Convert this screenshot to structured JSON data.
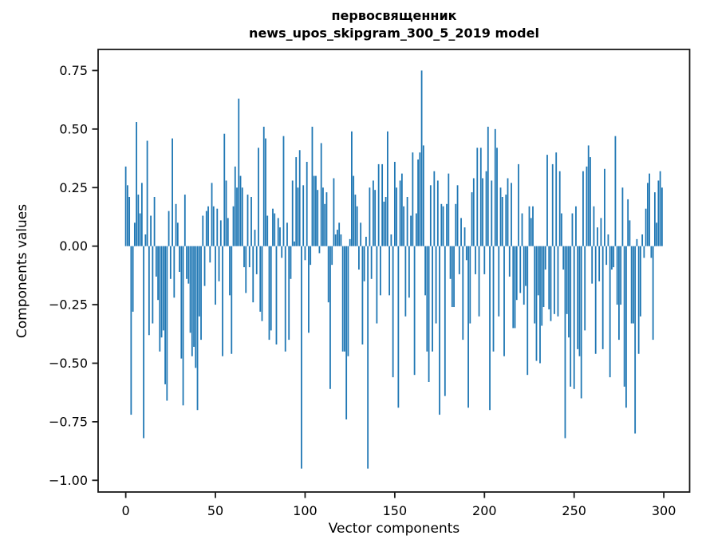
{
  "chart_data": {
    "type": "bar",
    "title_lines": [
      "первосвященник",
      "news_upos_skipgram_300_5_2019 model"
    ],
    "xlabel": "Vector components",
    "ylabel": "Components values",
    "bar_color": "#1f77b4",
    "axis_color": "#1a1a1a",
    "grid": false,
    "legend": null,
    "n_components": 300,
    "xlim": [
      -15.4,
      314.4
    ],
    "ylim": [
      -1.05,
      0.84
    ],
    "xticks": [
      0,
      50,
      100,
      150,
      200,
      250,
      300
    ],
    "xtick_labels": [
      "0",
      "50",
      "100",
      "150",
      "200",
      "250",
      "300"
    ],
    "yticks": [
      0.75,
      0.5,
      0.25,
      0,
      -0.25,
      -0.5,
      -0.75,
      -1
    ],
    "ytick_labels": [
      "0.75",
      "0.50",
      "0.25",
      "0.00",
      "−0.25",
      "−0.50",
      "−0.75",
      "−1.00"
    ],
    "values": [
      0.34,
      0.26,
      0.21,
      -0.72,
      -0.28,
      0.1,
      0.53,
      0.22,
      0.14,
      0.27,
      -0.82,
      0.05,
      0.45,
      -0.38,
      0.13,
      -0.33,
      0.21,
      -0.13,
      -0.23,
      -0.45,
      -0.39,
      -0.36,
      -0.59,
      -0.66,
      0.15,
      -0.14,
      0.46,
      -0.22,
      0.18,
      0.1,
      -0.11,
      -0.48,
      -0.68,
      0.22,
      -0.14,
      -0.16,
      -0.37,
      -0.47,
      -0.43,
      -0.52,
      -0.7,
      -0.3,
      -0.4,
      0.13,
      -0.17,
      0.15,
      0.17,
      -0.07,
      0.27,
      0.17,
      -0.25,
      0.16,
      -0.15,
      0.11,
      -0.47,
      0.48,
      0.28,
      0.12,
      -0.21,
      -0.46,
      0.17,
      0.34,
      0.25,
      0.63,
      0.3,
      0.25,
      -0.09,
      -0.2,
      0.22,
      -0.09,
      0.21,
      -0.24,
      0.07,
      -0.12,
      0.42,
      -0.28,
      -0.32,
      0.51,
      0.46,
      0.13,
      -0.4,
      -0.36,
      0.16,
      0.14,
      -0.42,
      0.12,
      0.08,
      -0.05,
      0.47,
      -0.45,
      0.1,
      -0.4,
      -0.14,
      0.28,
      0.02,
      0.38,
      0.25,
      0.41,
      -0.95,
      0.26,
      -0.06,
      0.36,
      -0.37,
      -0.08,
      0.51,
      0.3,
      0.3,
      0.24,
      -0.03,
      0.44,
      0.25,
      0.18,
      0.23,
      -0.24,
      -0.61,
      -0.08,
      0.29,
      0.05,
      0.07,
      0.1,
      0.05,
      -0.45,
      -0.45,
      -0.74,
      -0.47,
      0.03,
      0.49,
      0.3,
      0.22,
      0.17,
      -0.1,
      0.1,
      -0.42,
      -0.15,
      0.04,
      -0.95,
      0.25,
      -0.14,
      0.28,
      0.24,
      -0.33,
      0.35,
      -0.21,
      0.35,
      0.19,
      0.21,
      0.49,
      -0.21,
      0.05,
      -0.56,
      0.36,
      0.25,
      -0.69,
      0.28,
      0.31,
      0.17,
      -0.3,
      0.21,
      -0.22,
      0.13,
      0.4,
      -0.55,
      0.14,
      0.37,
      0.4,
      0.75,
      0.43,
      -0.21,
      -0.45,
      -0.58,
      0.26,
      -0.45,
      0.32,
      -0.33,
      0.28,
      -0.72,
      0.18,
      0.17,
      -0.64,
      0.18,
      0.31,
      -0.14,
      -0.26,
      -0.26,
      0.18,
      0.26,
      -0.12,
      0.12,
      -0.4,
      0.08,
      -0.06,
      -0.69,
      -0.33,
      0.23,
      0.29,
      -0.12,
      0.42,
      -0.3,
      0.42,
      0.29,
      -0.12,
      0.32,
      0.51,
      -0.7,
      0.28,
      -0.45,
      0.5,
      0.42,
      -0.3,
      0.25,
      0.21,
      -0.47,
      0.22,
      0.29,
      -0.13,
      0.27,
      -0.35,
      -0.35,
      -0.23,
      0.35,
      -0.2,
      0.14,
      -0.25,
      -0.17,
      -0.55,
      0.17,
      0.12,
      0.17,
      -0.33,
      -0.49,
      -0.21,
      -0.5,
      -0.34,
      -0.26,
      -0.1,
      0.39,
      -0.27,
      -0.32,
      0.35,
      -0.29,
      0.4,
      -0.3,
      0.32,
      0.14,
      -0.1,
      -0.82,
      -0.29,
      -0.39,
      -0.6,
      0.14,
      -0.61,
      0.17,
      -0.44,
      -0.47,
      -0.65,
      0.32,
      -0.36,
      0.34,
      0.43,
      0.38,
      -0.16,
      0.17,
      -0.46,
      0.08,
      -0.15,
      0.12,
      -0.44,
      0.33,
      -0.08,
      0.05,
      -0.56,
      -0.1,
      -0.09,
      0.47,
      -0.25,
      -0.4,
      -0.25,
      0.25,
      -0.6,
      -0.69,
      0.2,
      0.11,
      -0.33,
      -0.33,
      -0.8,
      0.03,
      -0.46,
      -0.3,
      0.05,
      -0.05,
      0.16,
      0.27,
      0.31,
      -0.05,
      -0.4,
      0.23,
      0.1,
      0.28,
      0.32,
      0.25
    ]
  }
}
